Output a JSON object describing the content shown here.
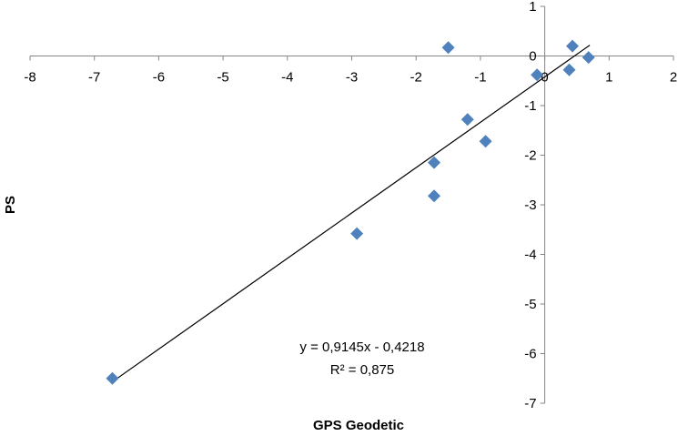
{
  "chart_data": {
    "type": "scatter",
    "xlabel": "GPS Geodetic",
    "ylabel": "PS",
    "xlim": [
      -8,
      2
    ],
    "ylim": [
      -7,
      1
    ],
    "x_ticks": [
      "-8",
      "-7",
      "-6",
      "-5",
      "-4",
      "-3",
      "-2",
      "-1",
      "0",
      "1",
      "2"
    ],
    "y_ticks": [
      "1",
      "0",
      "-1",
      "-2",
      "-3",
      "-4",
      "-5",
      "-6",
      "-7"
    ],
    "grid": false,
    "legend": "none",
    "marker": "diamond",
    "marker_color": "#4f81bd",
    "trendline_color": "#000000",
    "points": [
      {
        "x": -6.72,
        "y": -6.5
      },
      {
        "x": -2.92,
        "y": -3.58
      },
      {
        "x": -1.72,
        "y": -2.82
      },
      {
        "x": -1.72,
        "y": -2.15
      },
      {
        "x": -1.2,
        "y": -1.28
      },
      {
        "x": -0.92,
        "y": -1.72
      },
      {
        "x": -1.5,
        "y": 0.17
      },
      {
        "x": -0.12,
        "y": -0.38
      },
      {
        "x": 0.38,
        "y": -0.28
      },
      {
        "x": 0.43,
        "y": 0.2
      },
      {
        "x": 0.68,
        "y": -0.03
      }
    ],
    "trendline": {
      "slope": 0.9145,
      "intercept": -0.4218,
      "x_range": [
        -6.72,
        0.7
      ]
    },
    "annotation": {
      "equation": "y = 0,9145x - 0,4218",
      "r2": "R² = 0,875"
    }
  }
}
